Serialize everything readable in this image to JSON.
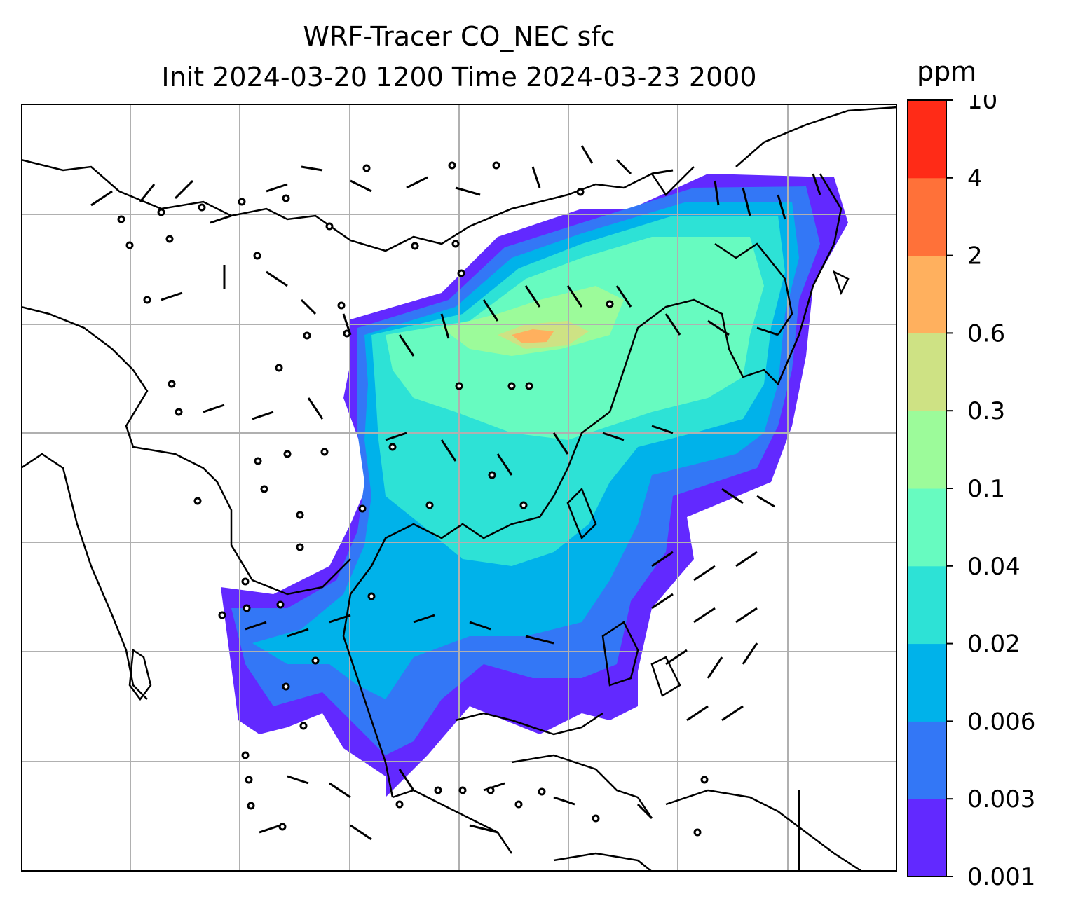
{
  "figure": {
    "title_line1": "WRF-Tracer CO_NEC sfc",
    "title_line2": "Init 2024-03-20 1200 Time 2024-03-23 2000"
  },
  "colorbar": {
    "units": "ppm",
    "levels": [
      "0.001",
      "0.003",
      "0.006",
      "0.02",
      "0.04",
      "0.1",
      "0.3",
      "0.6",
      "2",
      "4",
      "10"
    ],
    "colors": [
      "#6229ff",
      "#3377f6",
      "#00b2ea",
      "#2de2d6",
      "#67fbc0",
      "#9cfb9a",
      "#cee284",
      "#ffb05e",
      "#ff7139",
      "#ff2b17"
    ]
  },
  "map": {
    "gridline_color": "#b0b0b0",
    "coastline_color": "#000000",
    "field": "CO_NEC surface concentration",
    "wind_barbs": true
  }
}
